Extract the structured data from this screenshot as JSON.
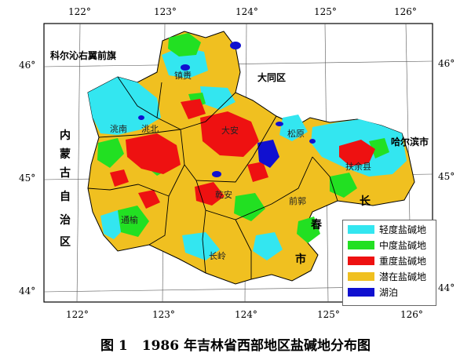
{
  "lon_top": [
    "122°",
    "123°",
    "124°",
    "125°",
    "126°"
  ],
  "lon_bottom": [
    "122°",
    "123°",
    "124°",
    "125°",
    "126°"
  ],
  "lat_left": [
    "46°",
    "45°",
    "44°"
  ],
  "lat_right": [
    "46°",
    "45°",
    "44°"
  ],
  "places": {
    "khorchin": "科尔沁右翼前旗",
    "datong": "大同区",
    "harbin": "哈尔滨市",
    "inner_mongolia": [
      "内",
      "蒙",
      "古",
      "自",
      "治",
      "区"
    ],
    "changchun": [
      "长",
      "春",
      "市"
    ],
    "songyuan": "松原",
    "qianguo": "前郭",
    "fuyu": "扶余县",
    "taonan": "洮南",
    "taobei": "洮北",
    "zhenlai": "镇赉",
    "daan": "大安",
    "tongyu": "通榆",
    "qianan": "乾安",
    "changling": "长岭"
  },
  "legend": [
    {
      "label": "轻度盐碱地",
      "color": "#33e6f0"
    },
    {
      "label": "中度盐碱地",
      "color": "#22e022"
    },
    {
      "label": "重度盐碱地",
      "color": "#ee1111"
    },
    {
      "label": "潜在盐碱地",
      "color": "#f0c020"
    },
    {
      "label": "湖泊",
      "color": "#1010d0"
    }
  ],
  "caption": {
    "figure": "图 1",
    "title": "1986 年吉林省西部地区盐碱地分布图"
  }
}
